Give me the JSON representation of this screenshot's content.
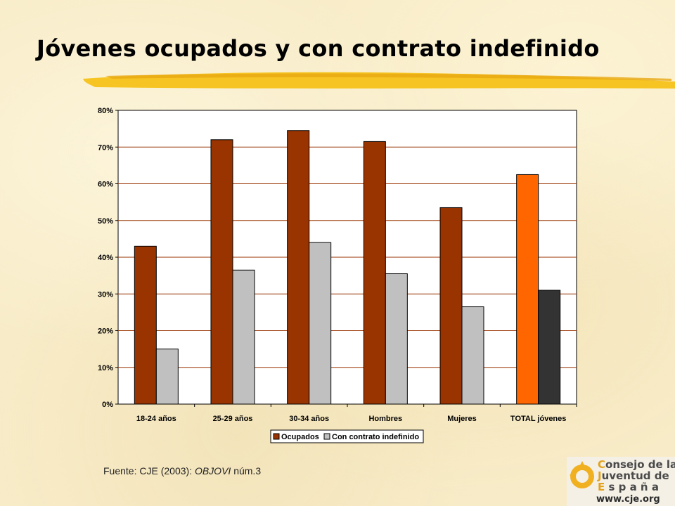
{
  "slide": {
    "title": "Jóvenes ocupados y con contrato indefinido",
    "source_prefix": "Fuente: CJE (2003): ",
    "source_italic": "OBJOVI",
    "source_suffix": " núm.3"
  },
  "logo": {
    "line1_cap": "C",
    "line1_rest": "onsejo de la",
    "line2_cap": "J",
    "line2_rest": "uventud de",
    "line3_cap": "E",
    "line3_rest": " s p a ñ a",
    "url": "www.cje.org"
  },
  "colors": {
    "ocupados": "#993300",
    "indefinido": "#c0c0c0",
    "total_ocupados": "#ff6600",
    "total_indefinido": "#333333",
    "brush": "#f5c21a",
    "emblem": "#f0b020"
  },
  "chart_data": {
    "type": "bar",
    "categories": [
      "18-24 años",
      "25-29 años",
      "30-34 años",
      "Hombres",
      "Mujeres",
      "TOTAL jóvenes"
    ],
    "series": [
      {
        "name": "Ocupados",
        "values": [
          43,
          72,
          74.5,
          71.5,
          53.5,
          62.5
        ]
      },
      {
        "name": "Con contrato indefinido",
        "values": [
          15,
          36.5,
          44,
          35.5,
          26.5,
          31
        ]
      }
    ],
    "y_ticks": [
      "0%",
      "10%",
      "20%",
      "30%",
      "40%",
      "50%",
      "60%",
      "70%",
      "80%"
    ],
    "ylim": [
      0,
      80
    ],
    "grid": true,
    "legend_position": "bottom"
  }
}
